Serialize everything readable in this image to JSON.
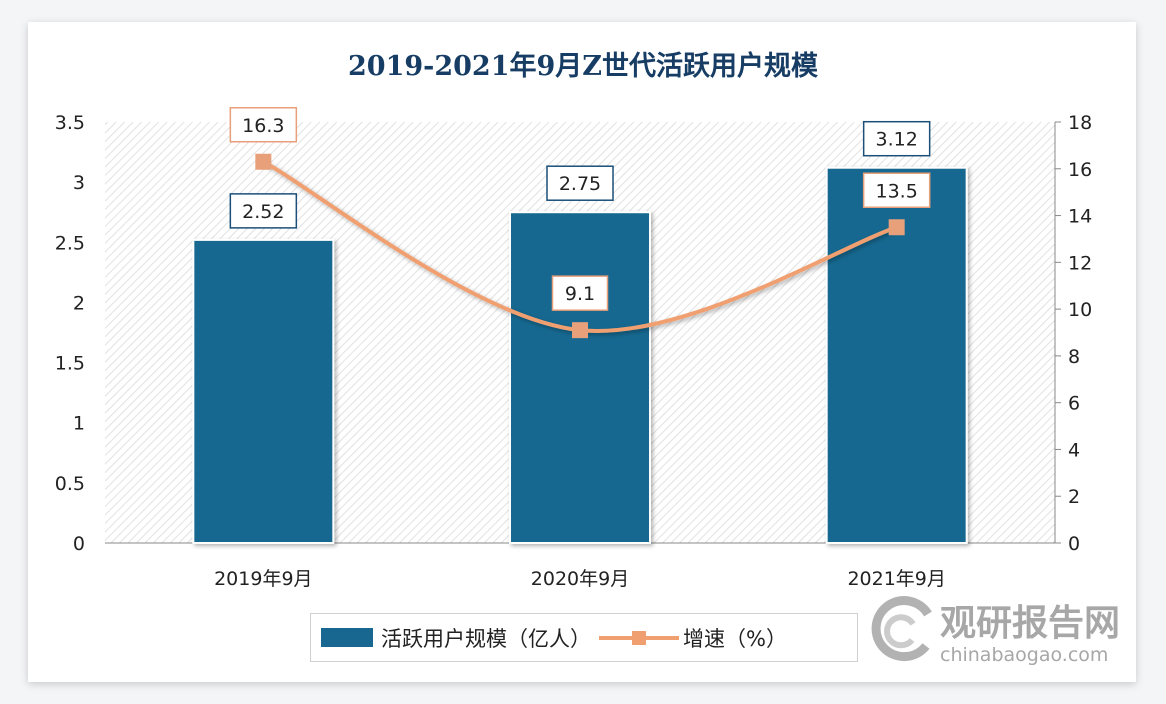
{
  "chart_data": {
    "type": "bar+line",
    "title": "2019-2021年9月Z世代活跃用户规模",
    "categories": [
      "2019年9月",
      "2020年9月",
      "2021年9月"
    ],
    "series": [
      {
        "name": "活跃用户规模（亿人）",
        "type": "bar",
        "axis": "left",
        "values": [
          2.52,
          2.75,
          3.12
        ],
        "labels": [
          "2.52",
          "2.75",
          "3.12"
        ],
        "color": "#176790"
      },
      {
        "name": "增速（%）",
        "type": "line",
        "axis": "right",
        "smooth": true,
        "values": [
          16.3,
          9.1,
          13.5
        ],
        "labels": [
          "16.3",
          "9.1",
          "13.5"
        ],
        "color": "#f0a070"
      }
    ],
    "y_left": {
      "range": [
        0,
        3.5
      ],
      "ticks": [
        "0",
        "0.5",
        "1",
        "1.5",
        "2",
        "2.5",
        "3",
        "3.5"
      ]
    },
    "y_right": {
      "range": [
        0,
        18
      ],
      "ticks": [
        "0",
        "2",
        "4",
        "6",
        "8",
        "10",
        "12",
        "14",
        "16",
        "18"
      ]
    },
    "legend": "bottom",
    "grid": false,
    "background_pattern": "diagonal-hatch"
  },
  "watermark": {
    "cn": "观研报告网",
    "en": "chinabaogao.com"
  }
}
